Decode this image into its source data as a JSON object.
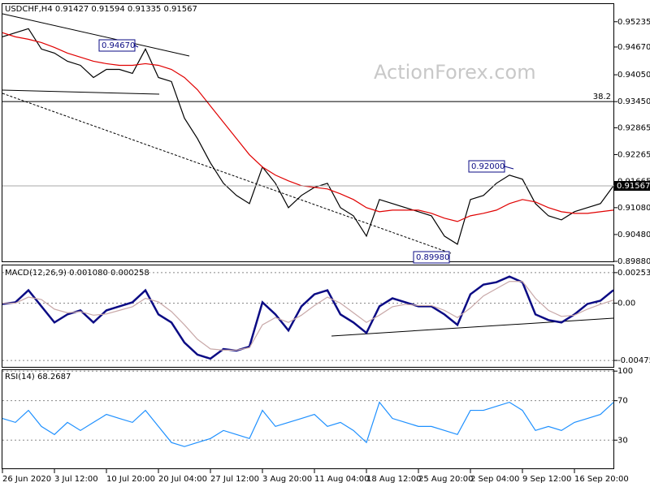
{
  "chart_data": [
    {
      "type": "line",
      "title": "USDCHF,H4  0.91427 0.91594 0.91335 0.91567",
      "watermark": "ActionForex.com",
      "categories": [
        "26 Jun 2020",
        null,
        null,
        null,
        "3 Jul 12:00",
        null,
        null,
        null,
        "10 Jul 20:00",
        null,
        null,
        null,
        "20 Jul 04:00",
        null,
        null,
        null,
        "27 Jul 12:00",
        null,
        null,
        null,
        "3 Aug 20:00",
        null,
        null,
        null,
        "11 Aug 04:00",
        null,
        null,
        null,
        "18 Aug 12:00",
        null,
        null,
        null,
        "25 Aug 20:00",
        null,
        null,
        null,
        "2 Sep 04:00",
        null,
        null,
        null,
        "9 Sep 12:00",
        null,
        null,
        null,
        "16 Sep 20:00",
        null,
        null,
        null
      ],
      "series": [
        {
          "name": "USDCHF",
          "color": "#000000",
          "values": [
            0.94898,
            0.94989,
            0.9508,
            0.94625,
            0.94534,
            0.94352,
            0.94261,
            0.93989,
            0.9417,
            0.9417,
            0.9408,
            0.94625,
            0.93989,
            0.93898,
            0.9308,
            0.92625,
            0.9208,
            0.91625,
            0.91353,
            0.91171,
            0.91989,
            0.91625,
            0.9108,
            0.91353,
            0.91534,
            0.91625,
            0.9108,
            0.90898,
            0.90444,
            0.91262,
            0.91171,
            0.9108,
            0.90989,
            0.90898,
            0.90444,
            0.90262,
            0.91262,
            0.91353,
            0.91625,
            0.91807,
            0.91716,
            0.91171,
            0.90898,
            0.90807,
            0.90989,
            0.9108,
            0.91171,
            0.91567
          ]
        },
        {
          "name": "MA",
          "color": "#e00000",
          "values": [
            0.94989,
            0.94898,
            0.94843,
            0.9477,
            0.94661,
            0.94534,
            0.94443,
            0.94352,
            0.94298,
            0.94261,
            0.94261,
            0.94298,
            0.94261,
            0.9417,
            0.93989,
            0.93716,
            0.93352,
            0.92989,
            0.92625,
            0.92262,
            0.91989,
            0.91807,
            0.9168,
            0.91571,
            0.91534,
            0.91498,
            0.91389,
            0.91262,
            0.9108,
            0.90989,
            0.91025,
            0.91025,
            0.91025,
            0.90953,
            0.90844,
            0.90771,
            0.90898,
            0.90953,
            0.91025,
            0.91171,
            0.91262,
            0.91207,
            0.9108,
            0.90989,
            0.90953,
            0.90953,
            0.90989,
            0.91025
          ]
        }
      ],
      "ylim": [
        0.8988,
        0.9563
      ],
      "yticks": [
        0.95235,
        {
          "value": 0.9467,
          "label": "0.94670"
        },
        {
          "value": 0.9405,
          "label": "0.94050"
        },
        {
          "value": 0.9345,
          "label": "0.93450"
        },
        0.92865,
        0.92265,
        0.91665,
        {
          "value": 0.9108,
          "label": "0.91080"
        },
        {
          "value": 0.9048,
          "label": "0.90480"
        },
        {
          "value": 0.8988,
          "label": "0.89880"
        }
      ],
      "grid": false,
      "fib_level": {
        "value": 0.9345,
        "label": "38.2"
      },
      "annotations": [
        "0.94670",
        "0.92000",
        "0.89980"
      ]
    },
    {
      "type": "line",
      "title": "MACD(12,26,9) 0.001080 0.000258",
      "series": [
        {
          "name": "MACD",
          "color": "#0b0b84",
          "values": [
            -6.7e-05,
            6.7e-05,
            0.001069,
            -0.000267,
            -0.001603,
            -0.000935,
            -0.000601,
            -0.001603,
            -0.000601,
            -0.000267,
            6.7e-05,
            0.001069,
            -0.000935,
            -0.001603,
            -0.003273,
            -0.004275,
            -0.004609,
            -0.003808,
            -0.003941,
            -0.003607,
            6.7e-05,
            -0.000935,
            -0.002271,
            -0.000267,
            0.000735,
            0.001069,
            -0.000935,
            -0.001603,
            -0.002472,
            -0.000267,
            0.000401,
            6.7e-05,
            -0.000267,
            -0.000267,
            -0.000935,
            -0.001804,
            0.000735,
            0.001536,
            0.001737,
            0.002204,
            0.001737,
            -0.000935,
            -0.001403,
            -0.001603,
            -0.000935,
            -6.7e-05,
            0.0002,
            0.00108
          ]
        },
        {
          "name": "Signal",
          "color": "#c8a8a8",
          "values": [
            0,
            0,
            0.0005,
            0.0003,
            -0.0005,
            -0.0008,
            -0.0007,
            -0.001,
            -0.0009,
            -0.0006,
            -0.0003,
            0.0004,
            0.0001,
            -0.0007,
            -0.0018,
            -0.003,
            -0.0038,
            -0.0039,
            -0.0039,
            -0.0037,
            -0.0018,
            -0.0012,
            -0.0016,
            -0.001,
            -0.0002,
            0.0005,
            0,
            -0.0008,
            -0.0016,
            -0.001,
            -0.0003,
            -0.0001,
            -0.0002,
            -0.0002,
            -0.0006,
            -0.0012,
            -0.0004,
            0.0006,
            0.0012,
            0.0018,
            0.0018,
            0.0004,
            -0.0006,
            -0.0011,
            -0.001,
            -0.0005,
            -0.0001,
            0.000258
          ]
        }
      ],
      "ylim": [
        -0.00529,
        0.00313
      ],
      "yticks": [
        0.002532,
        {
          "value": 0,
          "label": "0.00"
        },
        -0.004756
      ],
      "grid": true
    },
    {
      "type": "line",
      "title": "RSI(14) 68.2687",
      "series": [
        {
          "name": "RSI",
          "color": "#1e90ff",
          "values": [
            52,
            48,
            60.2,
            43.9,
            35.7,
            48,
            39.8,
            48,
            56.1,
            52,
            48,
            60.2,
            43.9,
            27.6,
            23.5,
            27.6,
            31.6,
            39.8,
            35.7,
            31.6,
            60.2,
            43.9,
            48,
            52,
            56.1,
            43.9,
            48,
            39.8,
            27.6,
            68.4,
            52,
            48,
            43.9,
            43.9,
            39.8,
            35.7,
            60.2,
            60.2,
            64.3,
            68.4,
            60.2,
            39.8,
            43.9,
            39.8,
            48,
            52,
            56.1,
            68.2687
          ]
        }
      ],
      "ylim": [
        1.4,
        101
      ],
      "yticks": [
        100,
        70,
        30
      ],
      "grid": true
    }
  ]
}
